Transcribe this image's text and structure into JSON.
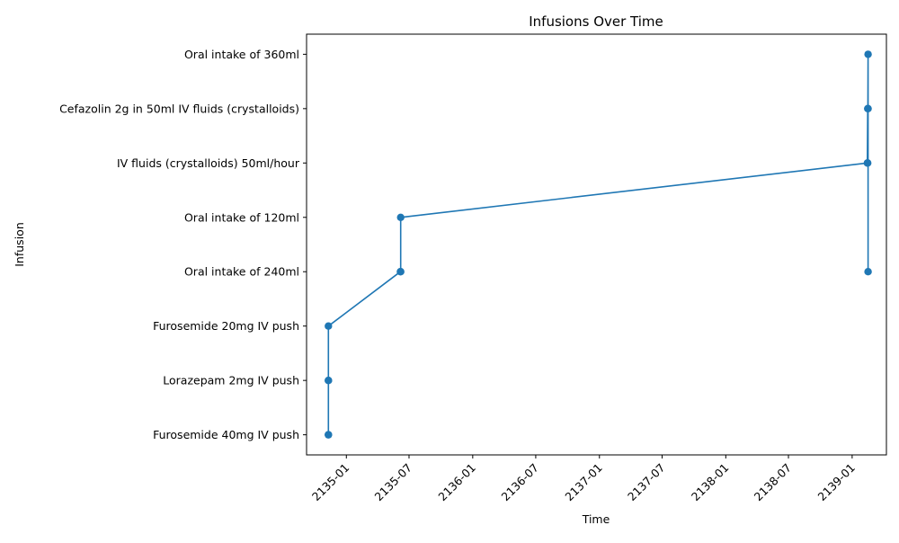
{
  "chart_data": {
    "type": "line",
    "title": "Infusions Over Time",
    "xlabel": "Time",
    "ylabel": "Infusion",
    "categories": [
      "Furosemide 40mg IV push",
      "Lorazepam 2mg IV push",
      "Furosemide 20mg IV push",
      "Oral intake of 240ml",
      "Oral intake of 120ml",
      "IV fluids (crystalloids) 50ml/hour",
      "Cefazolin 2g in 50ml IV fluids (crystalloids)",
      "Oral intake of 360ml"
    ],
    "x_ticks": [
      "2135-01",
      "2135-07",
      "2136-01",
      "2136-07",
      "2137-01",
      "2137-07",
      "2138-01",
      "2138-07",
      "2139-01"
    ],
    "xlim": [
      "2134-09-08",
      "2139-04-10"
    ],
    "grid": false,
    "series": [
      {
        "color": "#1f77b4",
        "points": [
          {
            "x": "2134-11-10",
            "y": "Furosemide 40mg IV push"
          },
          {
            "x": "2134-11-10",
            "y": "Furosemide 40mg IV push"
          },
          {
            "x": "2134-11-10",
            "y": "Lorazepam 2mg IV push"
          },
          {
            "x": "2134-11-10",
            "y": "Lorazepam 2mg IV push"
          },
          {
            "x": "2134-11-10",
            "y": "Furosemide 20mg IV push"
          },
          {
            "x": "2135-06-06",
            "y": "Oral intake of 240ml"
          },
          {
            "x": "2135-06-07",
            "y": "Oral intake of 240ml"
          },
          {
            "x": "2135-06-07",
            "y": "Oral intake of 120ml"
          },
          {
            "x": "2139-02-14",
            "y": "IV fluids (crystalloids) 50ml/hour"
          },
          {
            "x": "2139-02-15",
            "y": "Cefazolin 2g in 50ml IV fluids (crystalloids)"
          },
          {
            "x": "2139-02-15",
            "y": "IV fluids (crystalloids) 50ml/hour"
          },
          {
            "x": "2139-02-16",
            "y": "Oral intake of 360ml"
          },
          {
            "x": "2139-02-16",
            "y": "Cefazolin 2g in 50ml IV fluids (crystalloids)"
          },
          {
            "x": "2139-02-16",
            "y": "Oral intake of 240ml"
          }
        ]
      }
    ]
  }
}
